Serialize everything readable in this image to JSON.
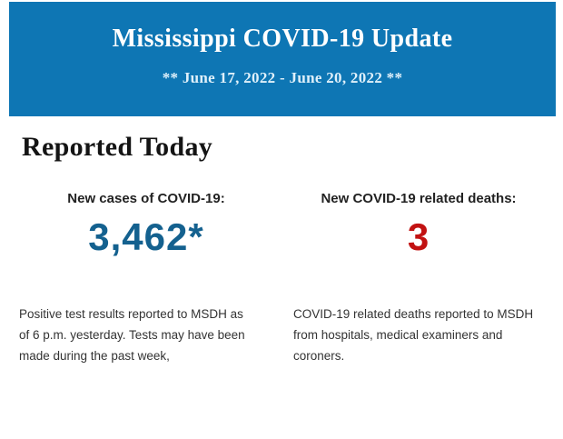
{
  "header": {
    "title": "Mississippi COVID-19 Update",
    "date_range": "** June 17, 2022 - June 20, 2022 **",
    "background_color": "#0e76b4",
    "title_color": "#ffffff",
    "date_color": "#dff0fa"
  },
  "section": {
    "heading": "Reported Today"
  },
  "stats": {
    "cases": {
      "label": "New cases of COVID-19:",
      "value": "3,462*",
      "value_color": "#14618f",
      "description": "Positive test results reported to MSDH as of 6 p.m. yesterday. Tests may have been made during the past week,"
    },
    "deaths": {
      "label": "New COVID-19 related deaths:",
      "value": "3",
      "value_color": "#c21212",
      "description": "COVID-19 related deaths reported to MSDH from hospitals, medical examiners and coroners."
    }
  }
}
